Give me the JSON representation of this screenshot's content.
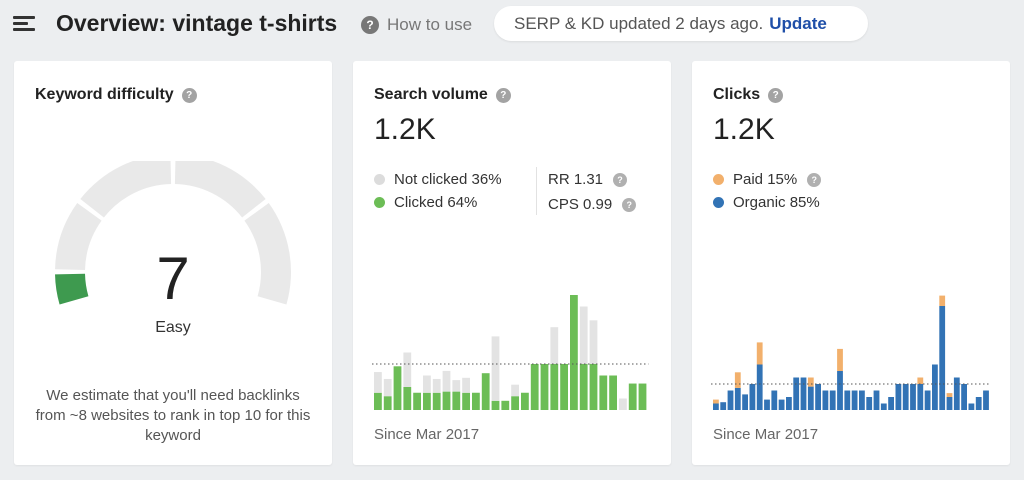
{
  "header": {
    "title": "Overview: vintage t-shirts",
    "how_to_use": "How to use",
    "serp_status": "SERP & KD updated 2 days ago.",
    "serp_update": "Update"
  },
  "icons": {
    "menu": "hamburger-menu-icon",
    "help": "question-mark-icon"
  },
  "colors": {
    "kd_easy": "#3e9a4f",
    "gauge_track": "#e9e9e9",
    "clicked": "#6cbd56",
    "not_clicked": "#e3e3e3",
    "paid": "#f2b06c",
    "organic": "#3273b5",
    "update_link": "#1f4fa8"
  },
  "keyword_difficulty": {
    "title": "Keyword difficulty",
    "value": "7",
    "label": "Easy",
    "level": 7,
    "max": 100,
    "description": "We estimate that you'll need backlinks from ~8 websites to rank in top 10 for this keyword"
  },
  "search_volume": {
    "title": "Search volume",
    "value": "1.2K",
    "legend": [
      {
        "label": "Not clicked 36%",
        "color": "#dcdcdc"
      },
      {
        "label": "Clicked 64%",
        "color": "#6cbd56"
      }
    ],
    "metrics": [
      {
        "label": "RR 1.31"
      },
      {
        "label": "CPS 0.99"
      }
    ],
    "since": "Since Mar 2017"
  },
  "clicks": {
    "title": "Clicks",
    "value": "1.2K",
    "legend": [
      {
        "label": "Paid 15%",
        "color": "#f2b06c"
      },
      {
        "label": "Organic 85%",
        "color": "#3273b5"
      }
    ],
    "since": "Since Mar 2017"
  },
  "chart_data": [
    {
      "type": "bar",
      "title": "Search volume",
      "xlabel": "Since Mar 2017",
      "stacked": true,
      "series": [
        {
          "name": "Clicked",
          "values": [
            15,
            12,
            38,
            20,
            15,
            15,
            15,
            16,
            16,
            15,
            15,
            32,
            8,
            8,
            12,
            15,
            40,
            40,
            40,
            40,
            100,
            40,
            40,
            30,
            30,
            0,
            23,
            23
          ]
        },
        {
          "name": "Not clicked",
          "values": [
            18,
            15,
            0,
            30,
            0,
            15,
            12,
            18,
            10,
            13,
            0,
            0,
            56,
            0,
            10,
            0,
            0,
            0,
            32,
            0,
            0,
            50,
            38,
            0,
            0,
            10,
            0,
            0
          ]
        }
      ],
      "reference_line": 40
    },
    {
      "type": "bar",
      "title": "Clicks",
      "xlabel": "Since Mar 2017",
      "stacked": true,
      "series": [
        {
          "name": "Organic",
          "values": [
            5,
            6,
            15,
            17,
            12,
            20,
            35,
            8,
            15,
            8,
            10,
            25,
            25,
            18,
            20,
            15,
            15,
            30,
            15,
            15,
            15,
            10,
            15,
            5,
            10,
            20,
            20,
            20,
            20,
            15,
            35,
            80,
            10,
            25,
            20,
            5,
            10,
            15
          ]
        },
        {
          "name": "Paid",
          "values": [
            3,
            0,
            0,
            12,
            0,
            0,
            17,
            0,
            0,
            0,
            0,
            0,
            0,
            7,
            0,
            0,
            0,
            17,
            0,
            0,
            0,
            0,
            0,
            0,
            0,
            0,
            0,
            0,
            5,
            0,
            0,
            8,
            3,
            0,
            0,
            0,
            0,
            0
          ]
        }
      ],
      "reference_line": 20
    }
  ]
}
